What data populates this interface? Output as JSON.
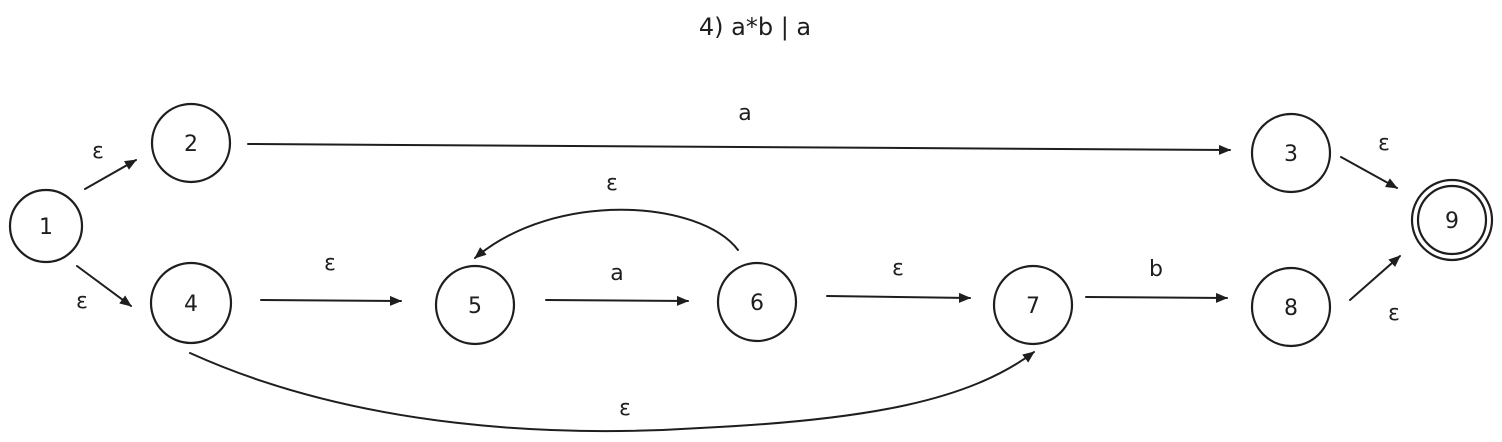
{
  "title": "4) a*b | a",
  "states": [
    {
      "id": "1",
      "label": "1",
      "accepting": false
    },
    {
      "id": "2",
      "label": "2",
      "accepting": false
    },
    {
      "id": "3",
      "label": "3",
      "accepting": false
    },
    {
      "id": "4",
      "label": "4",
      "accepting": false
    },
    {
      "id": "5",
      "label": "5",
      "accepting": false
    },
    {
      "id": "6",
      "label": "6",
      "accepting": false
    },
    {
      "id": "7",
      "label": "7",
      "accepting": false
    },
    {
      "id": "8",
      "label": "8",
      "accepting": false
    },
    {
      "id": "9",
      "label": "9",
      "accepting": true
    }
  ],
  "transitions": [
    {
      "from": "1",
      "to": "2",
      "label": "ε"
    },
    {
      "from": "1",
      "to": "4",
      "label": "ε"
    },
    {
      "from": "2",
      "to": "3",
      "label": "a"
    },
    {
      "from": "3",
      "to": "9",
      "label": "ε"
    },
    {
      "from": "4",
      "to": "5",
      "label": "ε"
    },
    {
      "from": "5",
      "to": "6",
      "label": "a"
    },
    {
      "from": "6",
      "to": "5",
      "label": "ε"
    },
    {
      "from": "6",
      "to": "7",
      "label": "ε"
    },
    {
      "from": "4",
      "to": "7",
      "label": "ε"
    },
    {
      "from": "7",
      "to": "8",
      "label": "b"
    },
    {
      "from": "8",
      "to": "9",
      "label": "ε"
    }
  ]
}
